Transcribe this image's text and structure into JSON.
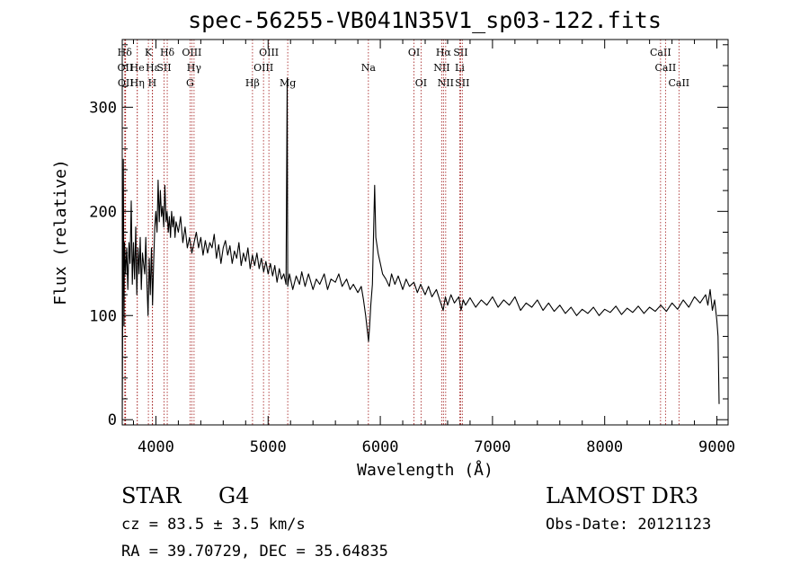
{
  "title": "spec-56255-VB041N35V1_sp03-122.fits",
  "footer": {
    "object_class": "STAR",
    "subclass": "G4",
    "survey": "LAMOST DR3",
    "redshift": "cz = 83.5 ± 3.5 km/s",
    "obs_date": "Obs-Date: 20121123",
    "coords": "RA =  39.70729, DEC =  35.64835"
  },
  "chart_data": {
    "type": "line",
    "title": "spec-56255-VB041N35V1_sp03-122.fits",
    "xlabel": "Wavelength (Å)",
    "ylabel": "Flux (relative)",
    "xlim": [
      3700,
      9100
    ],
    "ylim": [
      -5,
      365
    ],
    "xticks": [
      4000,
      5000,
      6000,
      7000,
      8000,
      9000
    ],
    "yticks": [
      0,
      100,
      200,
      300
    ],
    "grid": false,
    "series": [
      {
        "points": [
          [
            3700,
            0
          ],
          [
            3705,
            120
          ],
          [
            3710,
            250
          ],
          [
            3715,
            90
          ],
          [
            3720,
            170
          ],
          [
            3730,
            140
          ],
          [
            3740,
            165
          ],
          [
            3750,
            125
          ],
          [
            3760,
            170
          ],
          [
            3770,
            150
          ],
          [
            3780,
            210
          ],
          [
            3790,
            130
          ],
          [
            3800,
            170
          ],
          [
            3810,
            135
          ],
          [
            3820,
            185
          ],
          [
            3830,
            120
          ],
          [
            3840,
            165
          ],
          [
            3850,
            140
          ],
          [
            3860,
            175
          ],
          [
            3870,
            125
          ],
          [
            3880,
            160
          ],
          [
            3890,
            150
          ],
          [
            3900,
            140
          ],
          [
            3910,
            175
          ],
          [
            3920,
            130
          ],
          [
            3930,
            100
          ],
          [
            3940,
            155
          ],
          [
            3950,
            120
          ],
          [
            3960,
            165
          ],
          [
            3970,
            110
          ],
          [
            3980,
            150
          ],
          [
            3990,
            185
          ],
          [
            4000,
            200
          ],
          [
            4010,
            180
          ],
          [
            4020,
            230
          ],
          [
            4030,
            190
          ],
          [
            4040,
            220
          ],
          [
            4050,
            195
          ],
          [
            4060,
            205
          ],
          [
            4070,
            185
          ],
          [
            4080,
            225
          ],
          [
            4090,
            190
          ],
          [
            4100,
            200
          ],
          [
            4110,
            180
          ],
          [
            4120,
            195
          ],
          [
            4130,
            175
          ],
          [
            4140,
            200
          ],
          [
            4150,
            185
          ],
          [
            4160,
            195
          ],
          [
            4170,
            175
          ],
          [
            4180,
            190
          ],
          [
            4200,
            180
          ],
          [
            4220,
            195
          ],
          [
            4240,
            170
          ],
          [
            4260,
            185
          ],
          [
            4280,
            165
          ],
          [
            4300,
            175
          ],
          [
            4320,
            160
          ],
          [
            4340,
            170
          ],
          [
            4360,
            180
          ],
          [
            4380,
            165
          ],
          [
            4400,
            175
          ],
          [
            4420,
            158
          ],
          [
            4440,
            172
          ],
          [
            4460,
            160
          ],
          [
            4480,
            170
          ],
          [
            4500,
            165
          ],
          [
            4520,
            178
          ],
          [
            4540,
            155
          ],
          [
            4560,
            168
          ],
          [
            4580,
            150
          ],
          [
            4600,
            165
          ],
          [
            4620,
            172
          ],
          [
            4640,
            158
          ],
          [
            4660,
            167
          ],
          [
            4680,
            150
          ],
          [
            4700,
            162
          ],
          [
            4720,
            155
          ],
          [
            4740,
            170
          ],
          [
            4760,
            148
          ],
          [
            4780,
            160
          ],
          [
            4800,
            152
          ],
          [
            4820,
            165
          ],
          [
            4840,
            145
          ],
          [
            4860,
            158
          ],
          [
            4880,
            148
          ],
          [
            4900,
            160
          ],
          [
            4920,
            145
          ],
          [
            4940,
            155
          ],
          [
            4960,
            142
          ],
          [
            4980,
            152
          ],
          [
            5000,
            140
          ],
          [
            5020,
            150
          ],
          [
            5040,
            138
          ],
          [
            5060,
            148
          ],
          [
            5080,
            132
          ],
          [
            5100,
            145
          ],
          [
            5120,
            135
          ],
          [
            5140,
            140
          ],
          [
            5160,
            130
          ],
          [
            5170,
            328
          ],
          [
            5175,
            128
          ],
          [
            5190,
            140
          ],
          [
            5220,
            125
          ],
          [
            5250,
            138
          ],
          [
            5280,
            130
          ],
          [
            5300,
            142
          ],
          [
            5330,
            128
          ],
          [
            5360,
            140
          ],
          [
            5400,
            125
          ],
          [
            5430,
            135
          ],
          [
            5460,
            130
          ],
          [
            5500,
            140
          ],
          [
            5530,
            125
          ],
          [
            5560,
            135
          ],
          [
            5600,
            132
          ],
          [
            5630,
            140
          ],
          [
            5660,
            128
          ],
          [
            5700,
            135
          ],
          [
            5730,
            125
          ],
          [
            5760,
            130
          ],
          [
            5800,
            122
          ],
          [
            5830,
            128
          ],
          [
            5850,
            115
          ],
          [
            5870,
            100
          ],
          [
            5885,
            85
          ],
          [
            5895,
            75
          ],
          [
            5905,
            90
          ],
          [
            5915,
            110
          ],
          [
            5930,
            130
          ],
          [
            5950,
            225
          ],
          [
            5960,
            175
          ],
          [
            5980,
            160
          ],
          [
            6000,
            150
          ],
          [
            6020,
            140
          ],
          [
            6050,
            135
          ],
          [
            6080,
            128
          ],
          [
            6100,
            140
          ],
          [
            6130,
            130
          ],
          [
            6160,
            138
          ],
          [
            6200,
            125
          ],
          [
            6230,
            135
          ],
          [
            6260,
            128
          ],
          [
            6300,
            132
          ],
          [
            6330,
            122
          ],
          [
            6360,
            130
          ],
          [
            6400,
            120
          ],
          [
            6430,
            128
          ],
          [
            6460,
            118
          ],
          [
            6500,
            125
          ],
          [
            6530,
            115
          ],
          [
            6560,
            105
          ],
          [
            6580,
            118
          ],
          [
            6600,
            110
          ],
          [
            6630,
            120
          ],
          [
            6660,
            112
          ],
          [
            6700,
            118
          ],
          [
            6720,
            105
          ],
          [
            6740,
            115
          ],
          [
            6760,
            110
          ],
          [
            6800,
            117
          ],
          [
            6850,
            108
          ],
          [
            6900,
            115
          ],
          [
            6950,
            110
          ],
          [
            7000,
            118
          ],
          [
            7050,
            108
          ],
          [
            7100,
            115
          ],
          [
            7150,
            110
          ],
          [
            7200,
            118
          ],
          [
            7250,
            105
          ],
          [
            7300,
            112
          ],
          [
            7350,
            108
          ],
          [
            7400,
            115
          ],
          [
            7450,
            105
          ],
          [
            7500,
            112
          ],
          [
            7550,
            104
          ],
          [
            7600,
            110
          ],
          [
            7650,
            102
          ],
          [
            7700,
            108
          ],
          [
            7750,
            100
          ],
          [
            7800,
            106
          ],
          [
            7850,
            102
          ],
          [
            7900,
            108
          ],
          [
            7950,
            100
          ],
          [
            8000,
            106
          ],
          [
            8050,
            103
          ],
          [
            8100,
            109
          ],
          [
            8150,
            101
          ],
          [
            8200,
            107
          ],
          [
            8250,
            103
          ],
          [
            8300,
            109
          ],
          [
            8350,
            102
          ],
          [
            8400,
            108
          ],
          [
            8450,
            104
          ],
          [
            8500,
            110
          ],
          [
            8550,
            104
          ],
          [
            8600,
            112
          ],
          [
            8650,
            106
          ],
          [
            8700,
            115
          ],
          [
            8750,
            108
          ],
          [
            8800,
            118
          ],
          [
            8850,
            112
          ],
          [
            8900,
            120
          ],
          [
            8920,
            110
          ],
          [
            8940,
            125
          ],
          [
            8960,
            105
          ],
          [
            8980,
            115
          ],
          [
            9000,
            95
          ],
          [
            9010,
            80
          ],
          [
            9020,
            15
          ]
        ]
      }
    ],
    "line_color": "#000000",
    "annotation_color": "#a01818",
    "line_annotations": [
      {
        "label": "Hδ",
        "x": 3722,
        "row": 1
      },
      {
        "label": "OII",
        "x": 3727,
        "row": 2
      },
      {
        "label": "OII",
        "x": 3730,
        "row": 3
      },
      {
        "label": "He",
        "x": 3834,
        "row": 2
      },
      {
        "label": "Hη",
        "x": 3834,
        "row": 3
      },
      {
        "label": "K",
        "x": 3933,
        "row": 1
      },
      {
        "label": "H",
        "x": 3968,
        "row": 3
      },
      {
        "label": "Hε",
        "x": 3970,
        "row": 2
      },
      {
        "label": "SII",
        "x": 4072,
        "row": 2
      },
      {
        "label": "Hδ",
        "x": 4101,
        "row": 1
      },
      {
        "label": "G",
        "x": 4304,
        "row": 3
      },
      {
        "label": "OIII",
        "x": 4320,
        "row": 1
      },
      {
        "label": "Hγ",
        "x": 4340,
        "row": 2
      },
      {
        "label": "Hβ",
        "x": 4861,
        "row": 3
      },
      {
        "label": "OIII",
        "x": 4959,
        "row": 2
      },
      {
        "label": "OIII",
        "x": 5007,
        "row": 1
      },
      {
        "label": "Mg",
        "x": 5175,
        "row": 3
      },
      {
        "label": "Na",
        "x": 5894,
        "row": 2
      },
      {
        "label": "OI",
        "x": 6300,
        "row": 1
      },
      {
        "label": "OI",
        "x": 6363,
        "row": 3
      },
      {
        "label": "NII",
        "x": 6548,
        "row": 2
      },
      {
        "label": "Hα",
        "x": 6563,
        "row": 1
      },
      {
        "label": "NII",
        "x": 6583,
        "row": 3
      },
      {
        "label": "SII",
        "x": 6716,
        "row": 1
      },
      {
        "label": "SII",
        "x": 6731,
        "row": 3
      },
      {
        "label": "Li",
        "x": 6708,
        "row": 2
      },
      {
        "label": "CaII",
        "x": 8498,
        "row": 1
      },
      {
        "label": "CaII",
        "x": 8542,
        "row": 2
      },
      {
        "label": "CaII",
        "x": 8662,
        "row": 3
      }
    ]
  }
}
